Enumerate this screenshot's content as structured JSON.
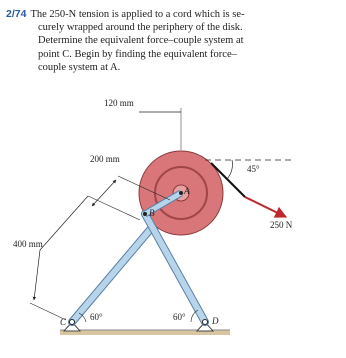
{
  "problem": {
    "number": "2/74",
    "lines": [
      "The 250-N tension is applied to a cord which is se-",
      "curely wrapped around the periphery of the disk.",
      "Determine the equivalent force–couple system at",
      "point C. Begin by finding the equivalent force–",
      "couple system at A."
    ]
  },
  "figure": {
    "dim_120": "120 mm",
    "dim_200": "200 mm",
    "dim_400": "400 mm",
    "angle_cord": "45°",
    "force": "250 N",
    "angle_left": "60°",
    "angle_right": "60°",
    "point_a": "A",
    "point_b": "B",
    "point_c": "C",
    "point_d": "D"
  }
}
